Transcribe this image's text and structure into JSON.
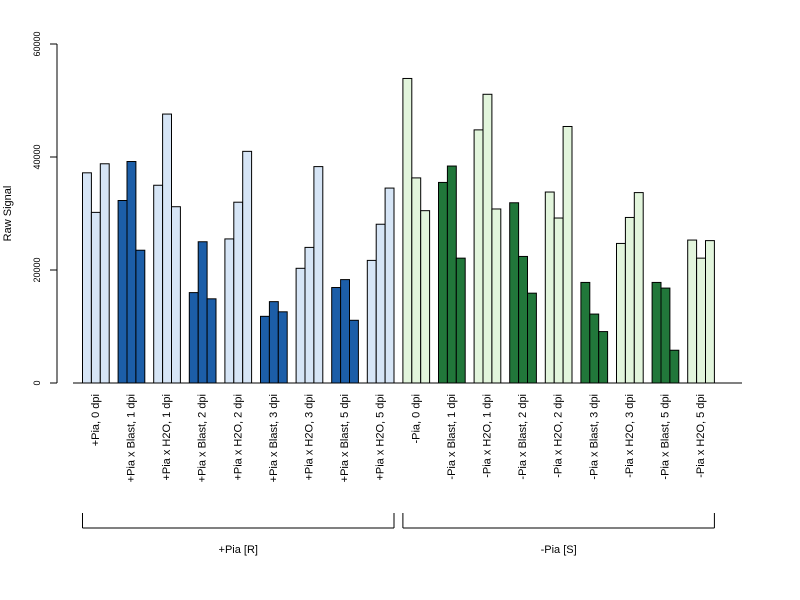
{
  "chart_data": {
    "type": "bar",
    "ylabel": "Raw Signal",
    "ylim": [
      0,
      60000
    ],
    "yticks": [
      0,
      20000,
      40000,
      60000
    ],
    "grid": false,
    "groups": [
      {
        "label": "+Pia, 0 dpi",
        "values": [
          37200,
          30200,
          38800
        ],
        "color": "#d6e5f6"
      },
      {
        "label": "+Pia x Blast, 1 dpi",
        "values": [
          32300,
          39200,
          23500
        ],
        "color": "#1c5ea8"
      },
      {
        "label": "+Pia x H2O, 1 dpi",
        "values": [
          35000,
          47600,
          31200
        ],
        "color": "#d6e5f6"
      },
      {
        "label": "+Pia x Blast, 2 dpi",
        "values": [
          16000,
          25000,
          14900
        ],
        "color": "#1c5ea8"
      },
      {
        "label": "+Pia x H2O, 2 dpi",
        "values": [
          25500,
          32000,
          41000
        ],
        "color": "#d6e5f6"
      },
      {
        "label": "+Pia x Blast, 3 dpi",
        "values": [
          11800,
          14400,
          12600
        ],
        "color": "#1c5ea8"
      },
      {
        "label": "+Pia x H2O, 3 dpi",
        "values": [
          20300,
          24000,
          38300
        ],
        "color": "#d6e5f6"
      },
      {
        "label": "+Pia x Blast, 5 dpi",
        "values": [
          16900,
          18300,
          11100
        ],
        "color": "#1c5ea8"
      },
      {
        "label": "+Pia x H2O, 5 dpi",
        "values": [
          21700,
          28100,
          34500
        ],
        "color": "#d6e5f6"
      },
      {
        "label": "-Pia, 0 dpi",
        "values": [
          53900,
          36300,
          30500
        ],
        "color": "#e2f5dc"
      },
      {
        "label": "-Pia x Blast, 1 dpi",
        "values": [
          35500,
          38400,
          22100
        ],
        "color": "#21773a"
      },
      {
        "label": "-Pia x H2O, 1 dpi",
        "values": [
          44800,
          51100,
          30800
        ],
        "color": "#e2f5dc"
      },
      {
        "label": "-Pia x Blast, 2 dpi",
        "values": [
          31900,
          22400,
          15900
        ],
        "color": "#21773a"
      },
      {
        "label": "-Pia x H2O, 2 dpi",
        "values": [
          33800,
          29200,
          45400
        ],
        "color": "#e2f5dc"
      },
      {
        "label": "-Pia x Blast, 3 dpi",
        "values": [
          17800,
          12200,
          9100
        ],
        "color": "#21773a"
      },
      {
        "label": "-Pia x H2O, 3 dpi",
        "values": [
          24700,
          29300,
          33700
        ],
        "color": "#e2f5dc"
      },
      {
        "label": "-Pia x Blast, 5 dpi",
        "values": [
          17800,
          16800,
          5800
        ],
        "color": "#21773a"
      },
      {
        "label": "-Pia x H2O, 5 dpi",
        "values": [
          25300,
          22100,
          25200
        ],
        "color": "#e2f5dc"
      }
    ],
    "brackets": [
      {
        "label": "+Pia [R]",
        "first_group": 0,
        "last_group": 8
      },
      {
        "label": "-Pia [S]",
        "first_group": 9,
        "last_group": 17
      }
    ]
  }
}
